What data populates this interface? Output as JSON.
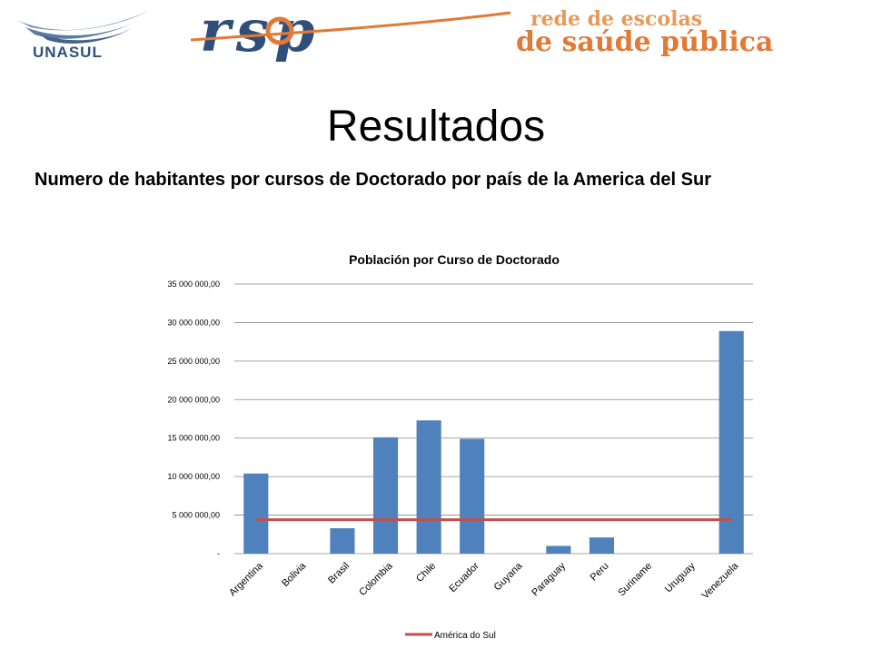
{
  "header": {
    "unasul_logo_text": "UNASUL",
    "rsp_logo_text": "rsp",
    "tagline_line1": "rede de escolas",
    "tagline_line2": "de saúde pública"
  },
  "slide": {
    "title": "Resultados",
    "subtitle": "Numero de habitantes por cursos de Doctorado por país de la America del Sur"
  },
  "colors": {
    "bar": "#4f81bd",
    "line": "#c0504d",
    "grid": "#888888",
    "tagline": "#e07a37",
    "logo_blue": "#2f4f7a"
  },
  "chart_data": {
    "type": "bar",
    "title": "Población por Curso de Doctorado",
    "categories": [
      "Argentina",
      "Bolivia",
      "Brasil",
      "Colombia",
      "Chile",
      "Ecuador",
      "Guyana",
      "Paraguay",
      "Peru",
      "Suriname",
      "Uruguay",
      "Venezuela"
    ],
    "values": [
      10400000,
      0,
      3300000,
      15100000,
      17300000,
      14900000,
      0,
      1000000,
      2100000,
      0,
      0,
      28900000
    ],
    "ylim": [
      0,
      35000000
    ],
    "yticks": [
      0,
      5000000,
      10000000,
      15000000,
      20000000,
      25000000,
      30000000,
      35000000
    ],
    "ytick_labels": [
      "-",
      "5 000 000,00",
      "10 000 000,00",
      "15 000 000,00",
      "20 000 000,00",
      "25 000 000,00",
      "30 000 000,00",
      "35 000 000,00"
    ],
    "reference_line": {
      "name": "América do Sul",
      "value": 4400000
    },
    "legend": {
      "position": "bottom",
      "entries": [
        "América do Sul"
      ]
    },
    "grid": true
  }
}
